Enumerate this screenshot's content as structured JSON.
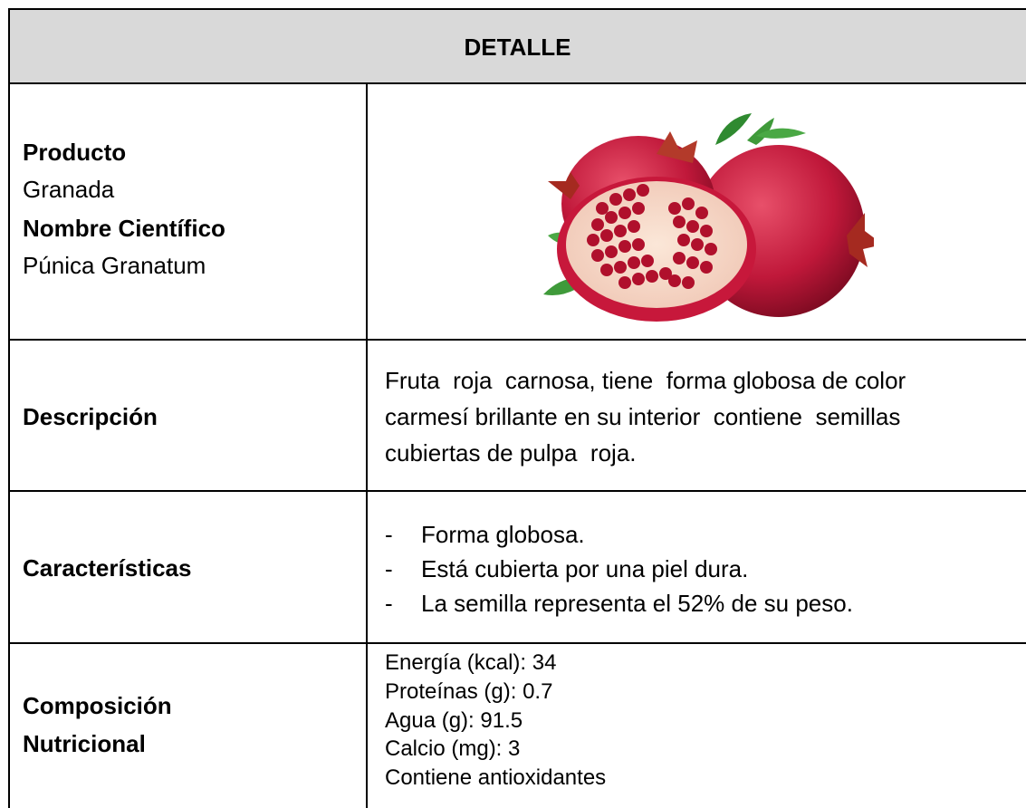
{
  "header": {
    "title": "DETALLE"
  },
  "product": {
    "product_label": "Producto",
    "product": "Granada",
    "scientific_label": "Nombre Científico",
    "scientific": "Púnica Granatum"
  },
  "description": {
    "label": "Descripción",
    "lines": [
      "Fruta  roja  carnosa, tiene  forma globosa de color",
      "carmesí brillante en su interior  contiene  semillas",
      "cubiertas de pulpa  roja."
    ]
  },
  "characteristics": {
    "label": "Características",
    "bullet": "-",
    "items": [
      "Forma globosa.",
      "Está cubierta por una piel dura.",
      "La semilla representa el 52% de su peso."
    ]
  },
  "nutrition": {
    "label_lines": [
      "Composición",
      "Nutricional"
    ],
    "lines": [
      "Energía (kcal): 34",
      "Proteínas (g): 0.7",
      "Agua (g): 91.5",
      "Calcio (mg): 3",
      "Contiene antioxidantes"
    ]
  }
}
